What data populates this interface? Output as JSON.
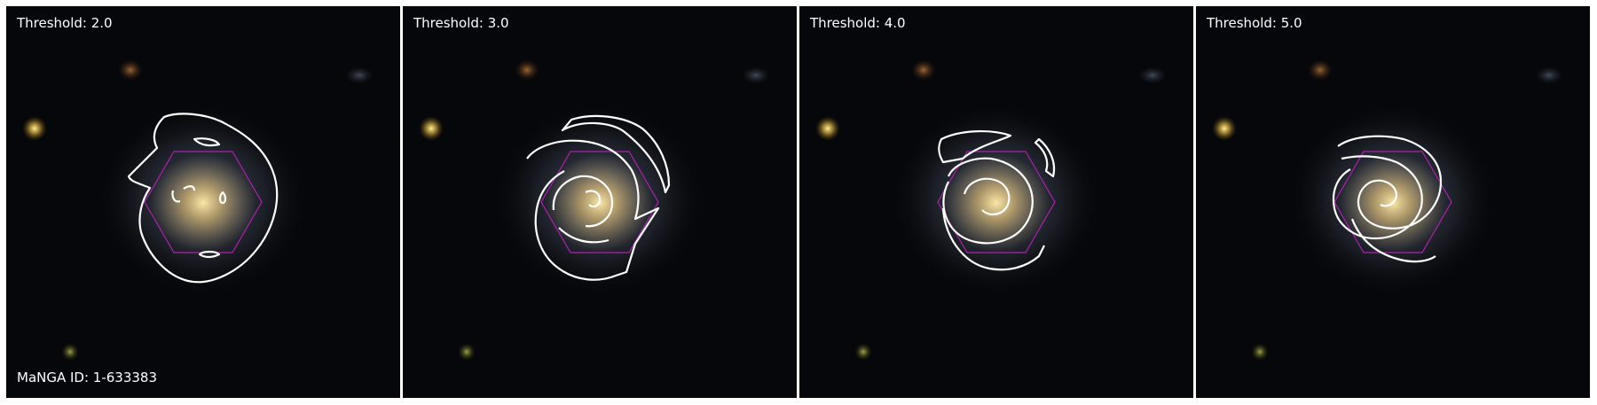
{
  "panels": [
    {
      "threshold_label": "Threshold: 2.0"
    },
    {
      "threshold_label": "Threshold: 3.0"
    },
    {
      "threshold_label": "Threshold: 4.0"
    },
    {
      "threshold_label": "Threshold: 5.0"
    }
  ],
  "manga_id_label": "MaNGA ID: 1-633383",
  "colors": {
    "contour": "#ffffff",
    "hexagon": "#b020b0",
    "background": "#06070a",
    "galaxy_core": "#f4d890",
    "galaxy_halo": "#8fa0c0"
  }
}
